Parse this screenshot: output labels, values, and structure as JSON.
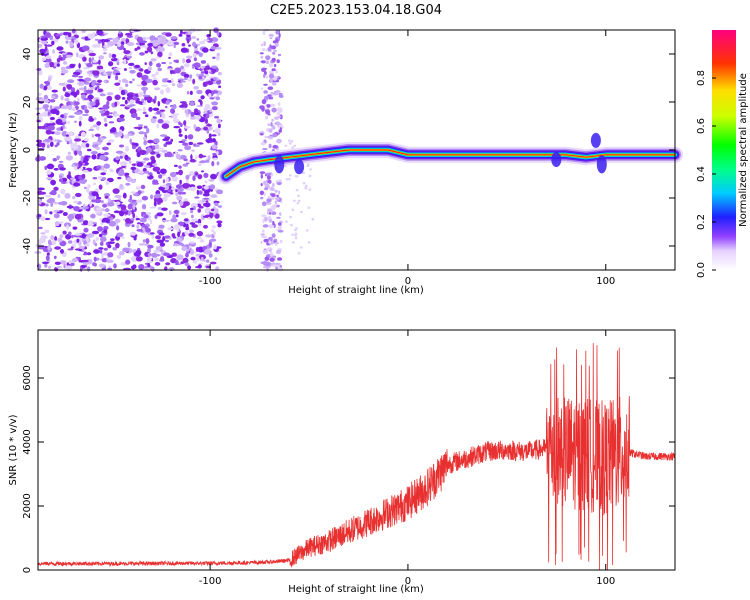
{
  "title": "C2E5.2023.153.04.18.G04",
  "chart_data": [
    {
      "type": "heatmap",
      "xlabel": "Height of straight line (km)",
      "ylabel": "Frequency (Hz)",
      "xlim": [
        -187,
        135
      ],
      "ylim": [
        -50,
        50
      ],
      "xticks": [
        -100,
        0,
        100
      ],
      "yticks": [
        -40,
        -20,
        0,
        20,
        40
      ],
      "ridge": [
        {
          "x": -92,
          "y": -11
        },
        {
          "x": -85,
          "y": -7
        },
        {
          "x": -78,
          "y": -5
        },
        {
          "x": -70,
          "y": -4
        },
        {
          "x": -60,
          "y": -3
        },
        {
          "x": -50,
          "y": -2
        },
        {
          "x": -40,
          "y": -1
        },
        {
          "x": -30,
          "y": 0
        },
        {
          "x": -20,
          "y": 0
        },
        {
          "x": -10,
          "y": 0
        },
        {
          "x": 0,
          "y": -2
        },
        {
          "x": 10,
          "y": -2
        },
        {
          "x": 20,
          "y": -2
        },
        {
          "x": 30,
          "y": -2
        },
        {
          "x": 40,
          "y": -2
        },
        {
          "x": 50,
          "y": -2
        },
        {
          "x": 60,
          "y": -2
        },
        {
          "x": 70,
          "y": -2
        },
        {
          "x": 80,
          "y": -2
        },
        {
          "x": 90,
          "y": -3
        },
        {
          "x": 100,
          "y": -2
        },
        {
          "x": 110,
          "y": -2
        },
        {
          "x": 120,
          "y": -2
        },
        {
          "x": 135,
          "y": -2
        }
      ],
      "colorbar": {
        "label": "Normalized spectral amplitude",
        "ticks": [
          "0.0",
          "0.2",
          "0.4",
          "0.6",
          "0.8"
        ],
        "tick_values": [
          0,
          0.2,
          0.4,
          0.6,
          0.8
        ],
        "range": [
          0,
          1
        ]
      }
    },
    {
      "type": "line",
      "xlabel": "Height of straight line (km)",
      "ylabel": "SNR (10 * v/v)",
      "xlim": [
        -187,
        135
      ],
      "ylim": [
        0,
        7500
      ],
      "xticks": [
        -100,
        0,
        100
      ],
      "yticks": [
        0,
        2000,
        4000,
        6000
      ],
      "line_color": "#e83030",
      "trend": [
        {
          "x": -187,
          "y": 200
        },
        {
          "x": -150,
          "y": 200
        },
        {
          "x": -100,
          "y": 210
        },
        {
          "x": -80,
          "y": 230
        },
        {
          "x": -70,
          "y": 250
        },
        {
          "x": -60,
          "y": 300
        },
        {
          "x": -50,
          "y": 700
        },
        {
          "x": -40,
          "y": 900
        },
        {
          "x": -30,
          "y": 1200
        },
        {
          "x": -20,
          "y": 1500
        },
        {
          "x": -10,
          "y": 1800
        },
        {
          "x": 0,
          "y": 2100
        },
        {
          "x": 10,
          "y": 2600
        },
        {
          "x": 20,
          "y": 3300
        },
        {
          "x": 30,
          "y": 3500
        },
        {
          "x": 40,
          "y": 3700
        },
        {
          "x": 50,
          "y": 3750
        },
        {
          "x": 60,
          "y": 3700
        },
        {
          "x": 70,
          "y": 3800
        },
        {
          "x": 80,
          "y": 3700
        },
        {
          "x": 90,
          "y": 3600
        },
        {
          "x": 100,
          "y": 3500
        },
        {
          "x": 110,
          "y": 3700
        },
        {
          "x": 120,
          "y": 3550
        },
        {
          "x": 135,
          "y": 3550
        }
      ]
    }
  ],
  "colors": {
    "dots": "#8a2be2",
    "line": "#e83030",
    "frame": "#000000"
  }
}
